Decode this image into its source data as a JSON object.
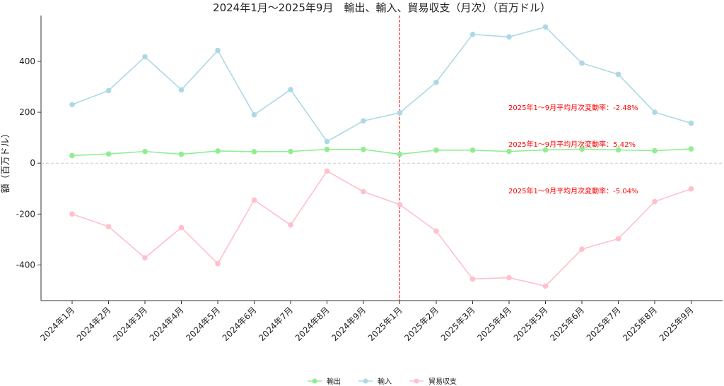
{
  "chart_data": {
    "type": "line",
    "title": "2024年1月〜2025年9月　輸出、輸入、貿易収支（月次）（百万ドル）",
    "xlabel": "",
    "ylabel": "額（百万ドル）",
    "categories": [
      "2024年1月",
      "2024年2月",
      "2024年3月",
      "2024年4月",
      "2024年5月",
      "2024年6月",
      "2024年7月",
      "2024年8月",
      "2024年9月",
      "2025年1月",
      "2025年2月",
      "2025年3月",
      "2025年4月",
      "2025年5月",
      "2025年6月",
      "2025年7月",
      "2025年8月",
      "2025年9月"
    ],
    "yticks": [
      -400,
      -200,
      0,
      200,
      400
    ],
    "ylim": [
      -540,
      580
    ],
    "grid": false,
    "zero_line": true,
    "divider_category": "2025年1月",
    "divider_color": "#ff0000",
    "legend_position": "bottom",
    "series": [
      {
        "name": "輸出",
        "color": "#90ee90",
        "values": [
          30,
          36,
          46,
          35,
          48,
          45,
          46,
          54,
          54,
          35,
          51,
          51,
          46,
          52,
          55,
          52,
          49,
          56
        ]
      },
      {
        "name": "輸入",
        "color": "#add8e6",
        "values": [
          230,
          285,
          418,
          288,
          443,
          190,
          289,
          85,
          166,
          198,
          318,
          506,
          496,
          535,
          393,
          349,
          200,
          157
        ]
      },
      {
        "name": "貿易収支",
        "color": "#ffc0cb",
        "values": [
          -200,
          -249,
          -372,
          -253,
          -395,
          -145,
          -243,
          -31,
          -112,
          -163,
          -267,
          -455,
          -450,
          -483,
          -338,
          -297,
          -151,
          -101
        ]
      }
    ],
    "annotations": [
      {
        "text": "2025年1〜9月平均月次変動率：-2.48%",
        "x_category": "2025年4月",
        "y": 220,
        "color": "#ff0000"
      },
      {
        "text": "2025年1〜9月平均月次変動率：5.42%",
        "x_category": "2025年4月",
        "y": 75,
        "color": "#ff0000"
      },
      {
        "text": "2025年1〜9月平均月次変動率：-5.04%",
        "x_category": "2025年4月",
        "y": -107,
        "color": "#ff0000"
      }
    ]
  }
}
